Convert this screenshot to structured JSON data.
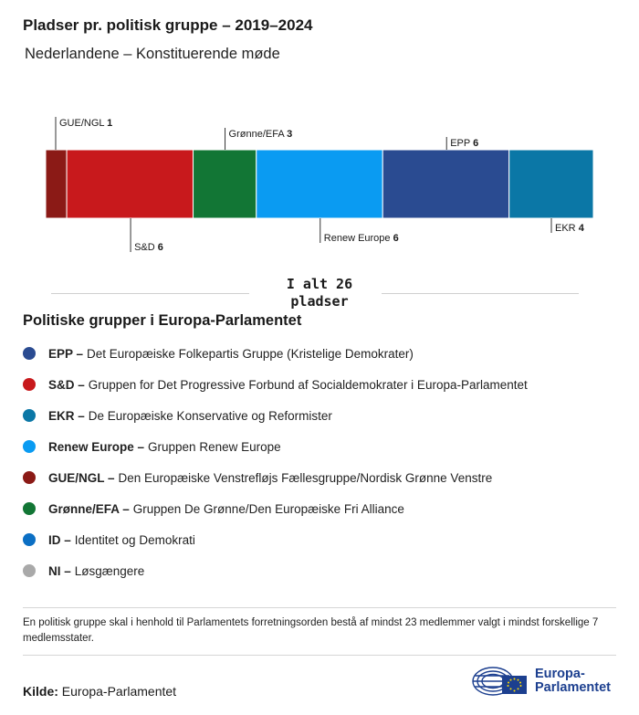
{
  "title": "Pladser pr. politisk gruppe – 2019–2024",
  "subtitle": "Nederlandene – Konstituerende møde",
  "total": {
    "line1": "I alt 26",
    "line2": "pladser"
  },
  "chart_data": {
    "type": "bar",
    "orientation": "stacked-horizontal",
    "title": "Pladser pr. politisk gruppe – 2019–2024",
    "subtitle": "Nederlandene – Konstituerende møde",
    "total": 26,
    "series": [
      {
        "name": "GUE/NGL",
        "value": 1,
        "color": "#8b1a16",
        "label_pos": "top"
      },
      {
        "name": "S&D",
        "value": 6,
        "color": "#c8191c",
        "label_pos": "bottom"
      },
      {
        "name": "Grønne/EFA",
        "value": 3,
        "color": "#127635",
        "label_pos": "top"
      },
      {
        "name": "Renew Europe",
        "value": 6,
        "color": "#0a9bf2",
        "label_pos": "bottom"
      },
      {
        "name": "EPP",
        "value": 6,
        "color": "#2a4b91",
        "label_pos": "top"
      },
      {
        "name": "EKR",
        "value": 4,
        "color": "#0b77a6",
        "label_pos": "bottom"
      }
    ]
  },
  "legend": {
    "title": "Politiske grupper i Europa-Parlamentet",
    "items": [
      {
        "abbr": "EPP –",
        "desc": "Det Europæiske Folkepartis Gruppe (Kristelige Demokrater)",
        "color": "#2a4b91"
      },
      {
        "abbr": "S&D –",
        "desc": "Gruppen for Det Progressive Forbund af Socialdemokrater i Europa-Parlamentet",
        "color": "#c8191c"
      },
      {
        "abbr": "EKR –",
        "desc": "De Europæiske Konservative og Reformister",
        "color": "#0b77a6"
      },
      {
        "abbr": "Renew Europe –",
        "desc": "Gruppen Renew Europe",
        "color": "#0a9bf2"
      },
      {
        "abbr": "GUE/NGL –",
        "desc": "Den Europæiske Venstrefløjs Fællesgruppe/Nordisk Grønne Venstre",
        "color": "#8b1a16"
      },
      {
        "abbr": "Grønne/EFA –",
        "desc": "Gruppen De Grønne/Den Europæiske Fri Alliance",
        "color": "#127635"
      },
      {
        "abbr": "ID –",
        "desc": "Identitet og Demokrati",
        "color": "#0b6fc4"
      },
      {
        "abbr": "NI –",
        "desc": "Løsgængere",
        "color": "#a9a9a9"
      }
    ]
  },
  "note": "En politisk gruppe skal i henhold til Parlamentets forretningsorden bestå af mindst 23 medlemmer valgt i mindst forskellige 7 medlemsstater.",
  "source": {
    "label": "Kilde:",
    "value": "Europa-Parlamentet"
  },
  "logo": {
    "line1": "Europa-",
    "line2": "Parlamentet",
    "brand_color": "#1c3f8f"
  }
}
